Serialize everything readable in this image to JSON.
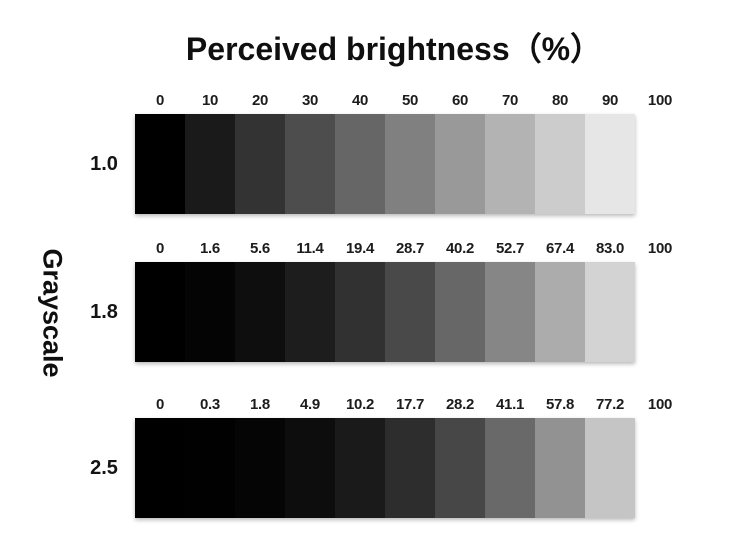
{
  "title": "Perceived brightness（%）",
  "y_axis_label": "Grayscale",
  "rows": [
    {
      "gamma": "1.0",
      "tick_labels": [
        "0",
        "10",
        "20",
        "30",
        "40",
        "50",
        "60",
        "70",
        "80",
        "90",
        "100"
      ],
      "swatches": [
        "#000000",
        "#1a1a1a",
        "#333333",
        "#4d4d4d",
        "#666666",
        "#808080",
        "#999999",
        "#b3b3b3",
        "#cccccc",
        "#e6e6e6"
      ]
    },
    {
      "gamma": "1.8",
      "tick_labels": [
        "0",
        "1.6",
        "5.6",
        "11.4",
        "19.4",
        "28.7",
        "40.2",
        "52.7",
        "67.4",
        "83.0",
        "100"
      ],
      "swatches": [
        "#000000",
        "#040404",
        "#0e0e0e",
        "#1d1d1d",
        "#313131",
        "#494949",
        "#676767",
        "#868686",
        "#acacac",
        "#d3d3d3"
      ]
    },
    {
      "gamma": "2.5",
      "tick_labels": [
        "0",
        "0.3",
        "1.8",
        "4.9",
        "10.2",
        "17.7",
        "28.2",
        "41.1",
        "57.8",
        "77.2",
        "100"
      ],
      "swatches": [
        "#000000",
        "#010101",
        "#050505",
        "#0d0d0d",
        "#1a1a1a",
        "#2d2d2d",
        "#474747",
        "#696969",
        "#929292",
        "#c5c5c5"
      ]
    }
  ],
  "chart_data": {
    "type": "heatmap",
    "title": "Perceived brightness（%）",
    "xlabel": "Perceived brightness (%)",
    "ylabel": "Grayscale",
    "categories_grayscale_step_pct": [
      0,
      10,
      20,
      30,
      40,
      50,
      60,
      70,
      80,
      90,
      100
    ],
    "series": [
      {
        "name": "gamma 1.0",
        "perceived_brightness_pct": [
          0,
          10,
          20,
          30,
          40,
          50,
          60,
          70,
          80,
          90,
          100
        ]
      },
      {
        "name": "gamma 1.8",
        "perceived_brightness_pct": [
          0,
          1.6,
          5.6,
          11.4,
          19.4,
          28.7,
          40.2,
          52.7,
          67.4,
          83.0,
          100
        ]
      },
      {
        "name": "gamma 2.5",
        "perceived_brightness_pct": [
          0,
          0.3,
          1.8,
          4.9,
          10.2,
          17.7,
          28.2,
          41.1,
          57.8,
          77.2,
          100
        ]
      }
    ],
    "legend_position": "left-row-labels",
    "grid": false
  },
  "colors": {
    "background": "#ffffff",
    "text": "#111111"
  }
}
